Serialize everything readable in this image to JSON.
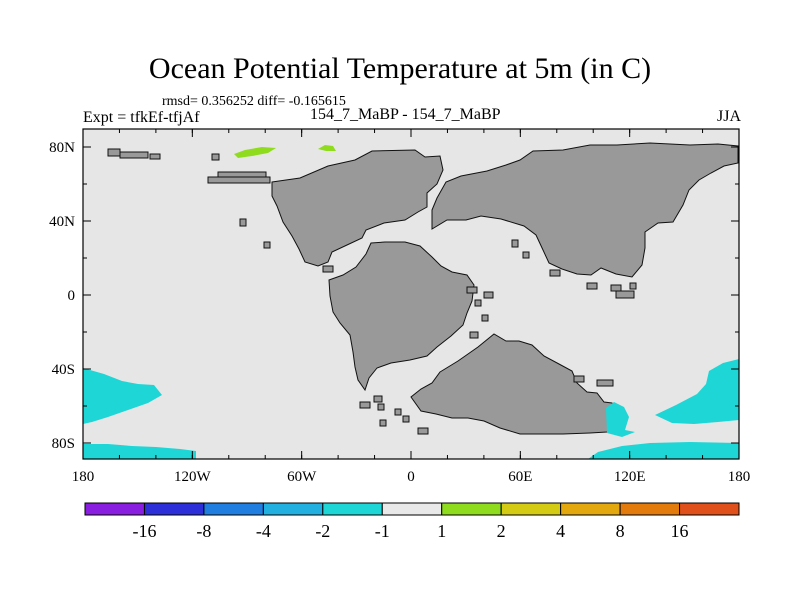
{
  "title": "Ocean Potential Temperature at 5m (in C)",
  "stats": "rmsd= 0.356252  diff= -0.165615",
  "left_label": "Expt = tfkEf-tfjAf",
  "center_label": "154_7_MaBP - 154_7_MaBP",
  "right_label": "JJA",
  "x_ticks": [
    "180",
    "120W",
    "60W",
    "0",
    "60E",
    "120E",
    "180"
  ],
  "y_ticks": [
    "80N",
    "40N",
    "0",
    "40S",
    "80S"
  ],
  "colorbar": {
    "colors": [
      "#8a1ee0",
      "#2d2fd8",
      "#1f7ee0",
      "#22b0e0",
      "#1fd6d6",
      "#e9e9e9",
      "#8fdc1e",
      "#d4cc14",
      "#e3a80e",
      "#e27a0c",
      "#e0501a"
    ],
    "labels": [
      "-16",
      "-8",
      "-4",
      "-2",
      "-1",
      "1",
      "2",
      "4",
      "8",
      "16"
    ]
  },
  "colors": {
    "ocean": "#e6e6e6",
    "land": "#999999",
    "cyan_anomaly": "#1fd6d6",
    "green_anomaly": "#8fdc1e"
  }
}
